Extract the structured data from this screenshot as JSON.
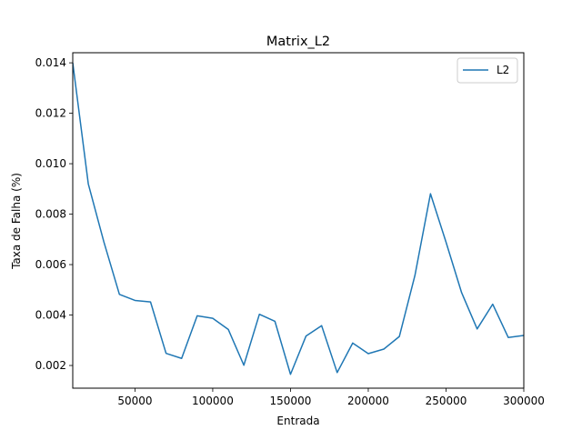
{
  "chart_data": {
    "type": "line",
    "title": "Matrix_L2",
    "xlabel": "Entrada",
    "ylabel": "Taxa de Falha (%)",
    "xlim": [
      10000,
      300000
    ],
    "ylim": [
      0.0011,
      0.0144
    ],
    "x_ticks": [
      50000,
      100000,
      150000,
      200000,
      250000,
      300000
    ],
    "x_tick_labels": [
      "50000",
      "100000",
      "150000",
      "200000",
      "250000",
      "300000"
    ],
    "y_ticks": [
      0.002,
      0.004,
      0.006,
      0.008,
      0.01,
      0.012,
      0.014
    ],
    "y_tick_labels": [
      "0.002",
      "0.004",
      "0.006",
      "0.008",
      "0.010",
      "0.012",
      "0.014"
    ],
    "grid": false,
    "legend_position": "top-right",
    "series": [
      {
        "name": "L2",
        "color": "#1f77b4",
        "x": [
          10000,
          20000,
          30000,
          40000,
          50000,
          60000,
          70000,
          80000,
          90000,
          100000,
          110000,
          120000,
          130000,
          140000,
          150000,
          160000,
          170000,
          180000,
          190000,
          200000,
          210000,
          220000,
          230000,
          240000,
          250000,
          260000,
          270000,
          280000,
          290000,
          300000
        ],
        "y": [
          0.014,
          0.0092,
          0.0069,
          0.00482,
          0.00458,
          0.00452,
          0.00248,
          0.00228,
          0.00397,
          0.00387,
          0.00343,
          0.00201,
          0.00403,
          0.00375,
          0.00165,
          0.00317,
          0.00358,
          0.00172,
          0.00289,
          0.00247,
          0.00265,
          0.00315,
          0.00557,
          0.00881,
          0.00689,
          0.00489,
          0.00345,
          0.00443,
          0.00311,
          0.00319
        ]
      }
    ]
  }
}
